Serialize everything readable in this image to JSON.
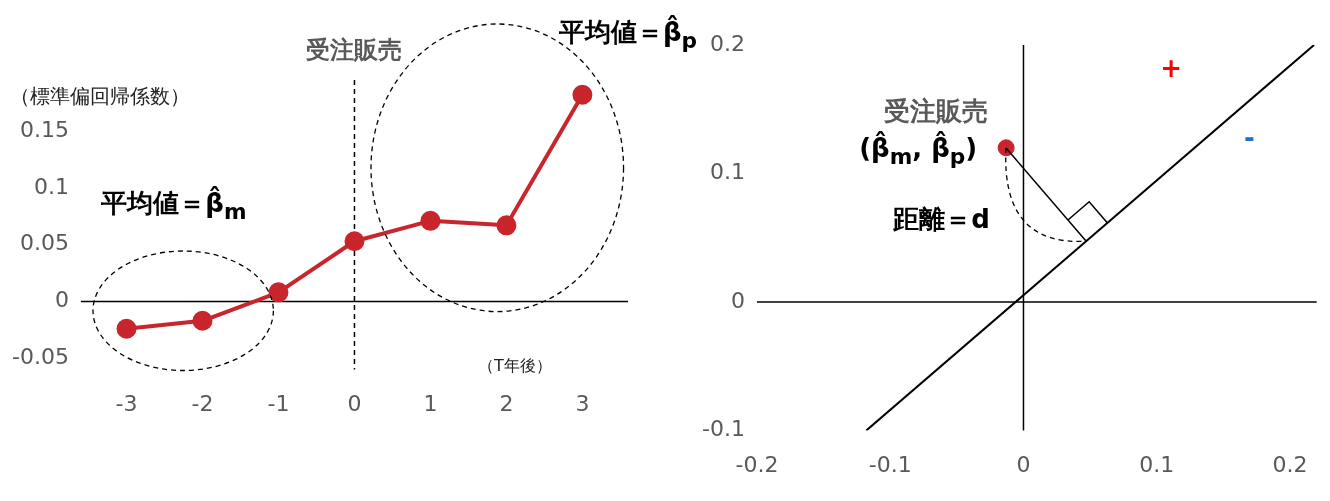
{
  "chart_data": [
    {
      "type": "line",
      "xlabel": "（T年後）",
      "ylabel": "（標準偏回帰係数）",
      "x": [
        -3,
        -2,
        -1,
        0,
        1,
        2,
        3
      ],
      "series": [
        {
          "color": "#c8252c",
          "values": [
            -0.024,
            -0.017,
            0.008,
            0.053,
            0.071,
            0.067,
            0.182
          ]
        }
      ],
      "xlim": [
        -3.6,
        3.6
      ],
      "xticks": [
        -3,
        -2,
        -1,
        0,
        1,
        2,
        3
      ],
      "ylim": [
        -0.06,
        0.195
      ],
      "yticks": [
        -0.05,
        0,
        0.05,
        0.1,
        0.15
      ],
      "ref_lines": [
        {
          "axis": "y",
          "value": 0,
          "color": "#000000",
          "line_style": "solid"
        },
        {
          "axis": "x",
          "value": 0,
          "label": "受注販売",
          "color": "#000000",
          "line_style": "dashed"
        }
      ],
      "annotations": [
        "平均値＝β̂$_{m}$",
        "平均値＝β̂$_{p}$"
      ],
      "grid": false,
      "legend": false,
      "marker": "circle",
      "line_style": "solid"
    },
    {
      "type": "scatter",
      "series": [
        {
          "type": "scatter",
          "x": [
            -0.013
          ],
          "values": [
            0.12
          ],
          "color": "#c8252c",
          "marker": "circle"
        },
        {
          "type": "line",
          "x": [
            -0.118,
            0.218
          ],
          "values": [
            -0.1,
            0.2
          ],
          "color": "#000000",
          "marker": "none"
        }
      ],
      "xlim": [
        -0.2,
        0.22
      ],
      "xticks": [
        -0.2,
        -0.1,
        0,
        0.1,
        0.2
      ],
      "ylim": [
        -0.1,
        0.2
      ],
      "yticks": [
        -0.1,
        0,
        0.1,
        0.2
      ],
      "ref_lines": [
        {
          "axis": "y",
          "value": 0,
          "color": "#000000",
          "line_style": "solid"
        },
        {
          "axis": "x",
          "value": 0,
          "color": "#000000",
          "line_style": "solid"
        }
      ],
      "annotations": [
        {
          "text": "受注販売",
          "x": -0.013,
          "y": 0.12
        },
        {
          "text": "(β̂$_{m}$, β̂$_{p}$)",
          "x": -0.013,
          "y": 0.12
        },
        "距離＝d",
        "+",
        "-"
      ],
      "grid": false,
      "legend": false
    }
  ]
}
